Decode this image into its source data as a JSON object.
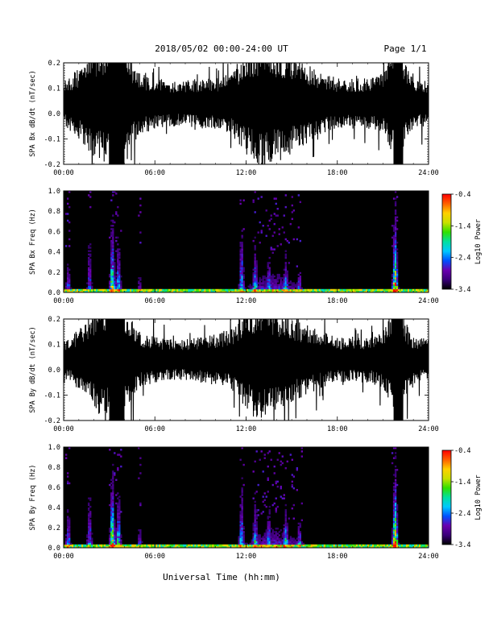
{
  "header": {
    "title": "2018/05/02  00:00-24:00 UT",
    "page": "Page 1/1"
  },
  "footer": {
    "xlabel": "Universal Time (hh:mm)"
  },
  "colors": {
    "background": "#ffffff",
    "trace": "#000000",
    "spectrogram_background": "#000000",
    "colormap": [
      "#000000",
      "#3b007a",
      "#6a00b0",
      "#0050ff",
      "#00c8ff",
      "#00e0a0",
      "#30e000",
      "#c8e000",
      "#ffd000",
      "#ff6000",
      "#ff0000"
    ]
  },
  "chart_data": [
    {
      "type": "line",
      "id": "bx-dbdt",
      "ylabel": "SPA Bx dB/dt (nT/sec)",
      "ylim": [
        -0.2,
        0.2
      ],
      "yticks": [
        -0.2,
        -0.1,
        0.0,
        0.1,
        0.2
      ],
      "ytick_labels": [
        "-0.2",
        "-0.1",
        "0.0",
        "0.1",
        "0.2"
      ],
      "xlim": [
        0,
        24
      ],
      "xticks": [
        0,
        6,
        12,
        18,
        24
      ],
      "xtick_labels": [
        "00:00",
        "06:00",
        "12:00",
        "18:00",
        "24:00"
      ],
      "envelope": {
        "hours": [
          0,
          1,
          2,
          3,
          3.2,
          4,
          5,
          6,
          7,
          8,
          9,
          10,
          11,
          12,
          13,
          14,
          15,
          16,
          17,
          18,
          19,
          20,
          21,
          21.8,
          22.5,
          23,
          24
        ],
        "amplitude": [
          0.09,
          0.14,
          0.22,
          0.25,
          0.25,
          0.22,
          0.12,
          0.1,
          0.09,
          0.09,
          0.1,
          0.1,
          0.12,
          0.2,
          0.25,
          0.22,
          0.2,
          0.16,
          0.12,
          0.1,
          0.1,
          0.1,
          0.12,
          0.25,
          0.16,
          0.1,
          0.09
        ]
      },
      "saturated_intervals": [
        [
          3.0,
          4.0
        ],
        [
          21.7,
          22.3
        ]
      ]
    },
    {
      "type": "heatmap",
      "id": "bx-spectrogram",
      "ylabel": "SPA Bx Freq (Hz)",
      "ylim": [
        0,
        1.0
      ],
      "yticks": [
        0.0,
        0.2,
        0.4,
        0.6,
        0.8,
        1.0
      ],
      "ytick_labels": [
        "0.0",
        "0.2",
        "0.4",
        "0.6",
        "0.8",
        "1.0"
      ],
      "xlim": [
        0,
        24
      ],
      "xticks": [
        0,
        6,
        12,
        18,
        24
      ],
      "xtick_labels": [
        "00:00",
        "06:00",
        "12:00",
        "18:00",
        "24:00"
      ],
      "colorbar": {
        "label": "Log10 Power",
        "range": [
          -3.4,
          -0.4
        ],
        "ticks": [
          -3.4,
          -2.4,
          -1.4,
          -0.4
        ],
        "tick_labels": [
          "-3.4",
          "-2.4",
          "-1.4",
          "-0.4"
        ]
      },
      "activity_bursts": [
        {
          "hour": 0.3,
          "reach_hz": 0.5,
          "peak": 0.4
        },
        {
          "hour": 1.7,
          "reach_hz": 0.9,
          "peak": 0.35
        },
        {
          "hour": 3.2,
          "reach_hz": 1.0,
          "peak": 0.75
        },
        {
          "hour": 3.6,
          "reach_hz": 0.8,
          "peak": 0.55
        },
        {
          "hour": 5.0,
          "reach_hz": 0.3,
          "peak": 0.3
        },
        {
          "hour": 11.7,
          "reach_hz": 1.0,
          "peak": 0.5
        },
        {
          "hour": 12.6,
          "reach_hz": 0.7,
          "peak": 0.55
        },
        {
          "hour": 13.5,
          "reach_hz": 0.6,
          "peak": 0.45
        },
        {
          "hour": 14.6,
          "reach_hz": 0.5,
          "peak": 0.6
        },
        {
          "hour": 15.5,
          "reach_hz": 0.4,
          "peak": 0.45
        },
        {
          "hour": 21.8,
          "reach_hz": 1.0,
          "peak": 1.0
        }
      ]
    },
    {
      "type": "line",
      "id": "by-dbdt",
      "ylabel": "SPA By dB/dt (nT/sec)",
      "ylim": [
        -0.2,
        0.2
      ],
      "yticks": [
        -0.2,
        -0.1,
        0.0,
        0.1,
        0.2
      ],
      "ytick_labels": [
        "-0.2",
        "-0.1",
        "0.0",
        "0.1",
        "0.2"
      ],
      "xlim": [
        0,
        24
      ],
      "xticks": [
        0,
        6,
        12,
        18,
        24
      ],
      "xtick_labels": [
        "00:00",
        "06:00",
        "12:00",
        "18:00",
        "24:00"
      ],
      "envelope": {
        "hours": [
          0,
          1,
          2,
          3,
          3.2,
          4,
          5,
          6,
          7,
          8,
          9,
          10,
          11,
          12,
          13,
          14,
          15,
          16,
          17,
          18,
          19,
          20,
          21,
          21.8,
          22.5,
          23,
          24
        ],
        "amplitude": [
          0.07,
          0.12,
          0.2,
          0.25,
          0.25,
          0.2,
          0.11,
          0.09,
          0.08,
          0.08,
          0.09,
          0.1,
          0.12,
          0.19,
          0.25,
          0.2,
          0.17,
          0.14,
          0.11,
          0.09,
          0.09,
          0.09,
          0.11,
          0.25,
          0.15,
          0.09,
          0.08
        ]
      },
      "saturated_intervals": [
        [
          3.0,
          4.0
        ],
        [
          21.7,
          22.3
        ]
      ]
    },
    {
      "type": "heatmap",
      "id": "by-spectrogram",
      "ylabel": "SPA By Freq (Hz)",
      "ylim": [
        0,
        1.0
      ],
      "yticks": [
        0.0,
        0.2,
        0.4,
        0.6,
        0.8,
        1.0
      ],
      "ytick_labels": [
        "0.0",
        "0.2",
        "0.4",
        "0.6",
        "0.8",
        "1.0"
      ],
      "xlim": [
        0,
        24
      ],
      "xticks": [
        0,
        6,
        12,
        18,
        24
      ],
      "xtick_labels": [
        "00:00",
        "06:00",
        "12:00",
        "18:00",
        "24:00"
      ],
      "colorbar": {
        "label": "Log10 Power",
        "range": [
          -3.4,
          -0.4
        ],
        "ticks": [
          -3.4,
          -2.4,
          -1.4,
          -0.4
        ],
        "tick_labels": [
          "-3.4",
          "-2.4",
          "-1.4",
          "-0.4"
        ]
      },
      "activity_bursts": [
        {
          "hour": 0.3,
          "reach_hz": 0.6,
          "peak": 0.45
        },
        {
          "hour": 1.7,
          "reach_hz": 0.9,
          "peak": 0.4
        },
        {
          "hour": 3.2,
          "reach_hz": 1.0,
          "peak": 0.8
        },
        {
          "hour": 3.6,
          "reach_hz": 0.8,
          "peak": 0.6
        },
        {
          "hour": 5.0,
          "reach_hz": 0.35,
          "peak": 0.35
        },
        {
          "hour": 11.7,
          "reach_hz": 1.0,
          "peak": 0.5
        },
        {
          "hour": 12.6,
          "reach_hz": 0.7,
          "peak": 0.55
        },
        {
          "hour": 13.5,
          "reach_hz": 0.6,
          "peak": 0.5
        },
        {
          "hour": 14.6,
          "reach_hz": 0.55,
          "peak": 0.65
        },
        {
          "hour": 15.5,
          "reach_hz": 0.4,
          "peak": 0.5
        },
        {
          "hour": 21.8,
          "reach_hz": 1.0,
          "peak": 1.0
        }
      ]
    }
  ]
}
